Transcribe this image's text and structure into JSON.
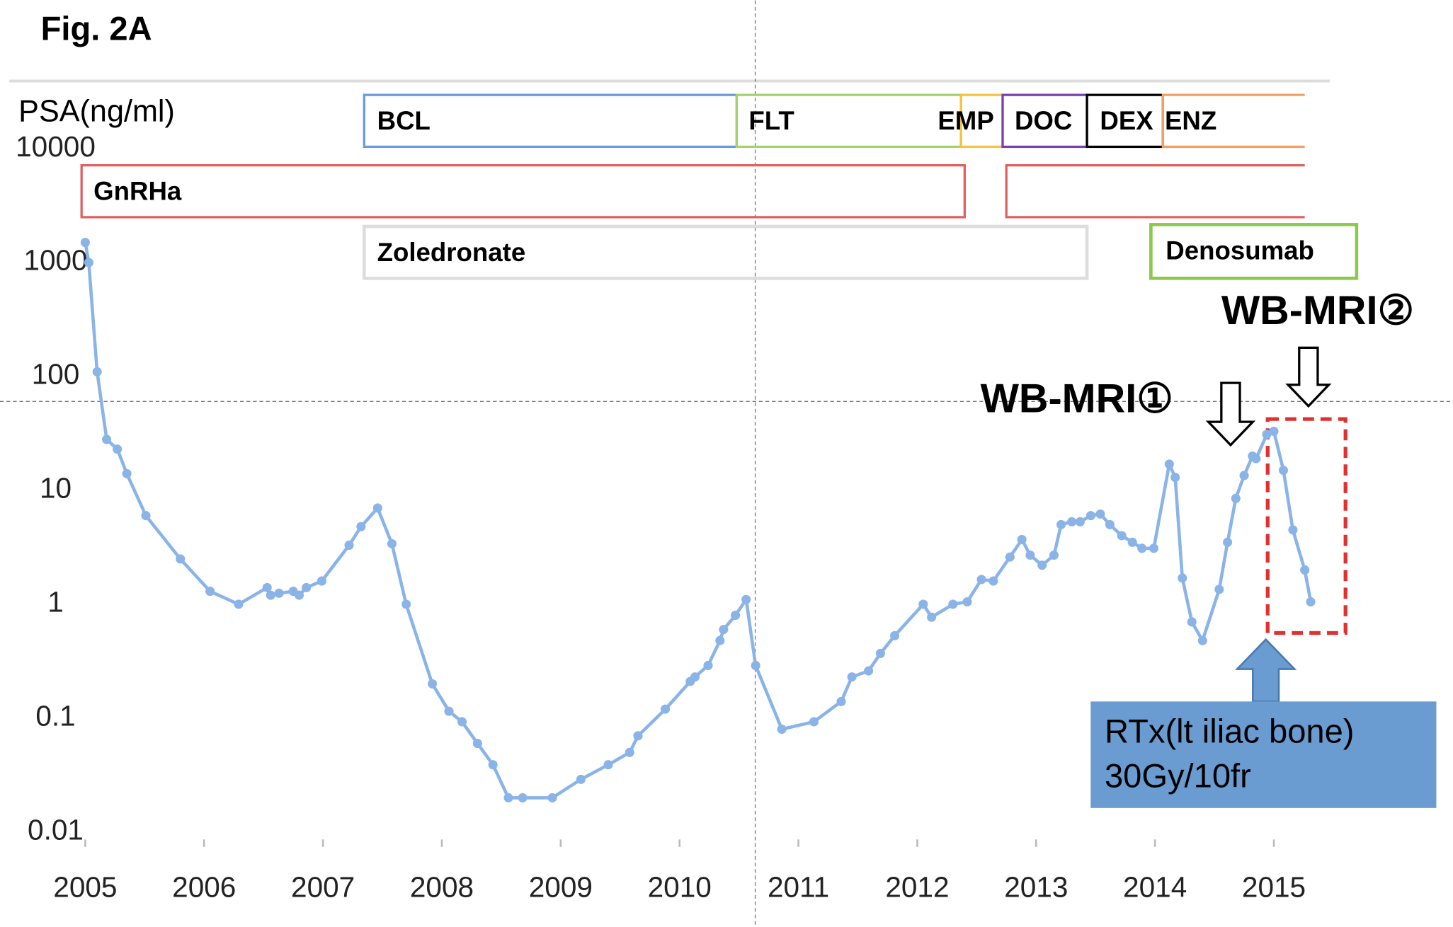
{
  "chart_data": {
    "type": "line",
    "title": "Fig. 2A",
    "y_label": "PSA(ng/ml)",
    "log_y": true,
    "color": "#8ab4e8",
    "xlim": [
      2005,
      2015.4
    ],
    "xticks": [
      2005,
      2006,
      2007,
      2008,
      2009,
      2010,
      2011,
      2012,
      2013,
      2014,
      2015
    ],
    "ylim": [
      0.01,
      10000
    ],
    "yticks": [
      0.01,
      0.1,
      1,
      10,
      100,
      1000,
      10000
    ],
    "x": [
      2005.0,
      2005.03,
      2005.1,
      2005.18,
      2005.27,
      2005.35,
      2005.51,
      2005.8,
      2006.05,
      2006.29,
      2006.53,
      2006.56,
      2006.63,
      2006.75,
      2006.8,
      2006.86,
      2006.99,
      2007.22,
      2007.32,
      2007.46,
      2007.58,
      2007.7,
      2007.92,
      2008.06,
      2008.17,
      2008.3,
      2008.43,
      2008.56,
      2008.68,
      2008.93,
      2009.17,
      2009.4,
      2009.58,
      2009.65,
      2009.88,
      2010.09,
      2010.13,
      2010.24,
      2010.34,
      2010.37,
      2010.47,
      2010.56,
      2010.64,
      2010.86,
      2011.13,
      2011.36,
      2011.45,
      2011.59,
      2011.69,
      2011.81,
      2012.05,
      2012.12,
      2012.3,
      2012.42,
      2012.54,
      2012.64,
      2012.78,
      2012.88,
      2012.95,
      2013.05,
      2013.15,
      2013.21,
      2013.3,
      2013.37,
      2013.46,
      2013.54,
      2013.62,
      2013.72,
      2013.81,
      2013.89,
      2013.99,
      2014.12,
      2014.17,
      2014.23,
      2014.31,
      2014.4,
      2014.54,
      2014.61,
      2014.68,
      2014.75,
      2014.82,
      2014.85,
      2014.94,
      2015.0,
      2015.08,
      2015.16,
      2015.26,
      2015.31
    ],
    "values": [
      1500,
      1000,
      110,
      28,
      23,
      14,
      6,
      2.5,
      1.3,
      1.0,
      1.4,
      1.2,
      1.25,
      1.3,
      1.2,
      1.4,
      1.6,
      3.3,
      4.8,
      7,
      3.4,
      1.0,
      0.2,
      0.115,
      0.093,
      0.06,
      0.039,
      0.02,
      0.02,
      0.02,
      0.029,
      0.039,
      0.05,
      0.07,
      0.12,
      0.21,
      0.23,
      0.29,
      0.48,
      0.6,
      0.8,
      1.1,
      0.29,
      0.08,
      0.093,
      0.14,
      0.23,
      0.26,
      0.37,
      0.53,
      1.0,
      0.77,
      1.0,
      1.05,
      1.65,
      1.6,
      2.6,
      3.7,
      2.7,
      2.2,
      2.7,
      5,
      5.3,
      5.3,
      6,
      6.2,
      5,
      4,
      3.5,
      3.1,
      3.1,
      17,
      13,
      1.7,
      0.7,
      0.48,
      1.35,
      3.5,
      8.5,
      13.5,
      20,
      19,
      31,
      33,
      15,
      4.5,
      2,
      1.05
    ],
    "treatments": [
      "BCL",
      "FLT",
      "EMP",
      "DOC",
      "DEX",
      "ENZ",
      "GnRHa",
      "Zoledronate",
      "Denosumab"
    ],
    "annotations": [
      "WB-MRI①",
      "WB-MRI②",
      "RTx(lt iliac bone)",
      "30Gy/10fr"
    ]
  }
}
